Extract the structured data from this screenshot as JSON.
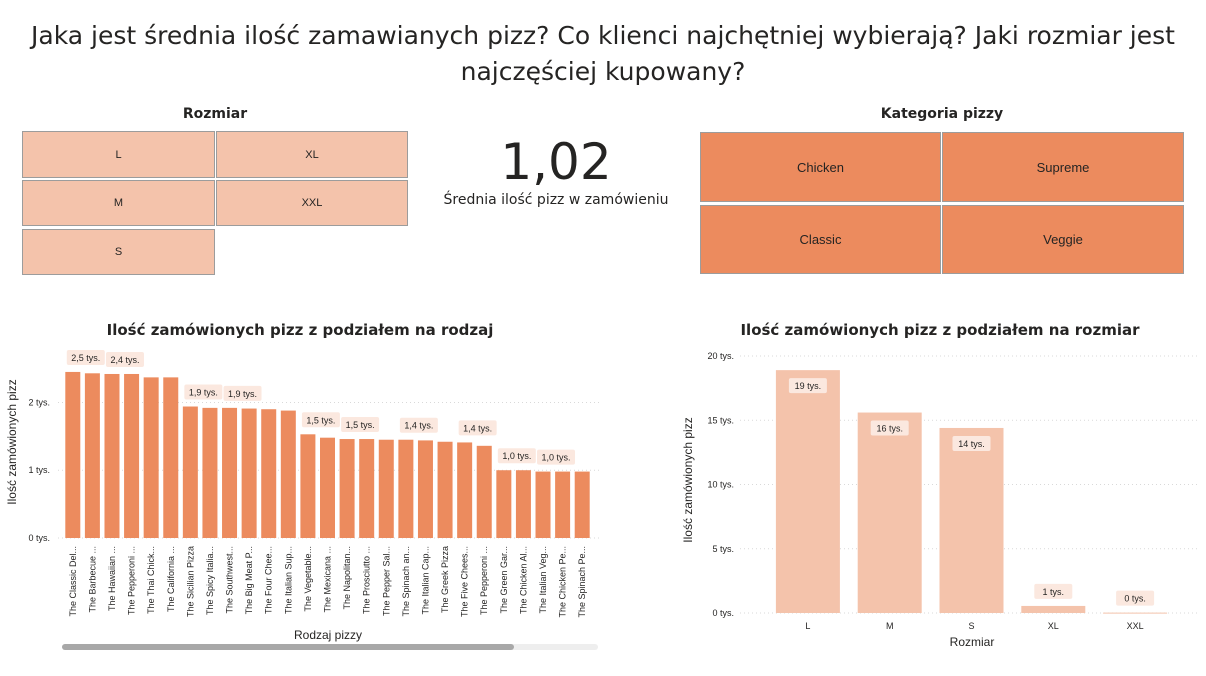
{
  "title": "Jaka jest średnia ilość zamawianych pizz? Co klienci najchętniej wybierają? Jaki rozmiar jest najczęściej kupowany?",
  "size_slicer": {
    "title": "Rozmiar",
    "items": [
      "L",
      "XL",
      "M",
      "XXL",
      "S"
    ]
  },
  "kpi": {
    "value": "1,02",
    "label": "Średnia ilość pizz w zamówieniu"
  },
  "category_slicer": {
    "title": "Kategoria pizzy",
    "items": [
      "Chicken",
      "Supreme",
      "Classic",
      "Veggie"
    ]
  },
  "colors": {
    "bar_dark": "#ec8b5e",
    "bar_light": "#f4c3ab",
    "label_bg": "#fbe8df",
    "grid": "#d9d9d9"
  },
  "chart_data": [
    {
      "type": "bar",
      "title": "Ilość zamówionych pizz z podziałem na rodzaj",
      "xlabel": "Rodzaj pizzy",
      "ylabel": "Ilość zamówionych pizz",
      "ylim": [
        0,
        2.7
      ],
      "yticks": [
        0,
        1,
        2
      ],
      "ytick_labels": [
        "0 tys.",
        "1 tys.",
        "2 tys."
      ],
      "grid": true,
      "categories": [
        "The Classic Del...",
        "The Barbecue ...",
        "The Hawaiian ...",
        "The Pepperoni ...",
        "The Thai Chick...",
        "The California ...",
        "The Sicilian Pizza",
        "The Spicy Italia...",
        "The Southwest...",
        "The Big Meat P...",
        "The Four Chee...",
        "The Italian Sup...",
        "The Vegetable...",
        "The Mexicana ...",
        "The Napolitan...",
        "The Prosciutto ...",
        "The Pepper Sal...",
        "The Spinach an...",
        "The Italian Cap...",
        "The Greek Pizza",
        "The Five Chees...",
        "The Pepperoni ...",
        "The Green Gar...",
        "The Chicken Al...",
        "The Italian Veg...",
        "The Chicken Pe...",
        "The Spinach Pe..."
      ],
      "values": [
        2.45,
        2.43,
        2.42,
        2.42,
        2.37,
        2.37,
        1.94,
        1.92,
        1.92,
        1.91,
        1.9,
        1.88,
        1.53,
        1.48,
        1.46,
        1.46,
        1.45,
        1.45,
        1.44,
        1.42,
        1.41,
        1.36,
        1.0,
        1.0,
        0.98,
        0.98,
        0.98
      ],
      "data_labels": [
        "2,5 tys.",
        "",
        "2,4 tys.",
        "",
        "",
        "",
        "1,9 tys.",
        "",
        "1,9 tys.",
        "",
        "",
        "",
        "1,5 tys.",
        "",
        "1,5 tys.",
        "",
        "",
        "1,4 tys.",
        "",
        "",
        "1,4 tys.",
        "",
        "1,0 tys.",
        "",
        "1,0 tys.",
        "",
        ""
      ]
    },
    {
      "type": "bar",
      "title": "Ilość zamówionych pizz z podziałem na rozmiar",
      "xlabel": "Rozmiar",
      "ylabel": "Ilość zamówionych pizz",
      "ylim": [
        0,
        20
      ],
      "yticks": [
        0,
        5,
        10,
        15,
        20
      ],
      "ytick_labels": [
        "0 tys.",
        "5 tys.",
        "10 tys.",
        "15 tys.",
        "20 tys."
      ],
      "grid": true,
      "categories": [
        "L",
        "M",
        "S",
        "XL",
        "XXL"
      ],
      "values": [
        18.9,
        15.6,
        14.4,
        0.55,
        0.03
      ],
      "data_labels": [
        "19 tys.",
        "16 tys.",
        "14 tys.",
        "1 tys.",
        "0 tys."
      ]
    }
  ]
}
